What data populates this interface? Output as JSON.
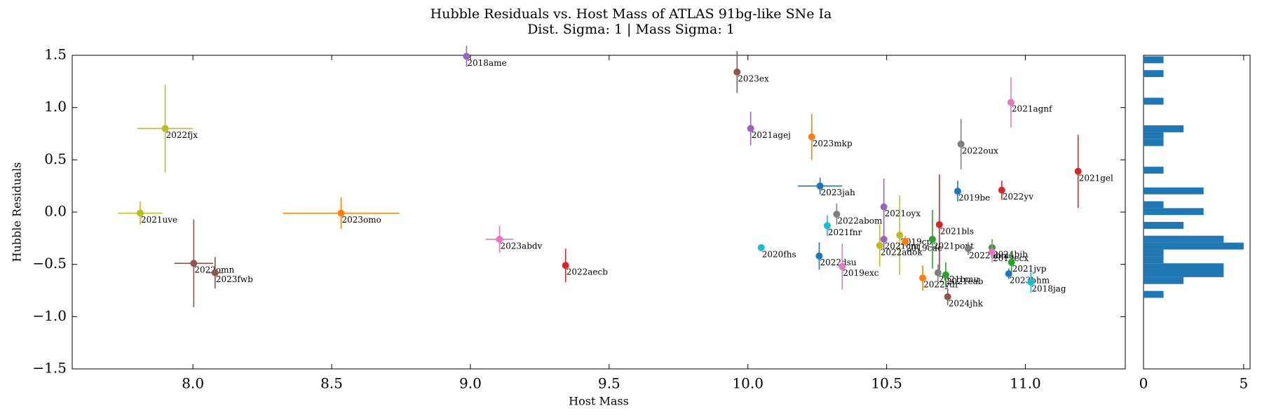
{
  "chart_data": [
    {
      "type": "scatter",
      "title": "Hubble Residuals vs. Host Mass of ATLAS 91bg-like SNe Ia",
      "subtitle": "Dist. Sigma: 1 | Mass Sigma: 1",
      "x_label": "Host Mass",
      "y_label": "Hubble Residuals",
      "xlim": [
        7.565,
        11.36
      ],
      "ylim": [
        -1.5,
        1.5
      ],
      "xticks": [
        {
          "value": 8,
          "label": "8.0"
        },
        8.5,
        {
          "value": 9,
          "label": "9.0"
        },
        9.5,
        {
          "value": 10,
          "label": "10.0"
        },
        10.5,
        {
          "value": 11,
          "label": "11.0"
        }
      ],
      "yticks": [
        {
          "value": -1.5,
          "label": "−1.5"
        },
        {
          "value": -1,
          "label": "−1.0"
        },
        {
          "value": -0.5,
          "label": "−0.5"
        },
        {
          "value": 0,
          "label": "0.0"
        },
        0.5,
        {
          "value": 1,
          "label": "1.0"
        },
        1.5
      ],
      "labels": [
        "2018ame",
        "2023ex",
        "2021agnf",
        "2022fjx",
        "2021agej",
        "2023mkp",
        "2022oux",
        "2021gel",
        "2023jah",
        "2019be",
        "2022yv",
        "2021uve",
        "2023omo",
        "2021oyx",
        "2022abom",
        "2021fnr",
        "2021bls",
        "2019cp",
        "2021cm",
        "2022adok",
        "2019cdc",
        "2021pont",
        "2022ubm",
        "2024bib",
        "2019ecx",
        "2021jvp",
        "2023bhm",
        "2018jag",
        "2020fhs",
        "2022dsu",
        "2019exc",
        "2023abdv",
        "2022aecb",
        "2022omn",
        "2023fwb",
        "2022ydr",
        "2021bmu",
        "2021eab",
        "2024jhk"
      ],
      "x": [
        8.986,
        9.961,
        10.948,
        7.9,
        10.01,
        10.23,
        10.768,
        11.19,
        10.26,
        10.756,
        10.915,
        7.81,
        8.534,
        10.49,
        10.32,
        10.286,
        10.69,
        10.547,
        10.49,
        10.475,
        10.567,
        10.665,
        10.794,
        10.88,
        10.88,
        10.95,
        10.94,
        11.02,
        10.048,
        10.257,
        10.34,
        9.105,
        9.343,
        8.003,
        8.08,
        10.63,
        10.685,
        10.713,
        10.72
      ],
      "y": [
        1.49,
        1.34,
        1.05,
        0.8,
        0.8,
        0.72,
        0.65,
        0.39,
        0.25,
        0.2,
        0.21,
        -0.01,
        -0.01,
        0.05,
        -0.02,
        -0.13,
        -0.12,
        -0.22,
        -0.26,
        -0.32,
        -0.28,
        -0.26,
        -0.35,
        -0.34,
        -0.38,
        -0.48,
        -0.59,
        -0.67,
        -0.34,
        -0.42,
        -0.52,
        -0.26,
        -0.51,
        -0.49,
        -0.58,
        -0.63,
        -0.58,
        -0.6,
        -0.81
      ],
      "xerr": [
        null,
        null,
        null,
        0.1,
        null,
        null,
        null,
        null,
        0.08,
        null,
        null,
        0.08,
        0.21,
        null,
        null,
        null,
        null,
        null,
        null,
        null,
        null,
        null,
        null,
        null,
        null,
        null,
        null,
        null,
        null,
        null,
        null,
        0.05,
        null,
        0.07,
        0.03,
        null,
        null,
        null,
        null
      ],
      "yerr": [
        0.1,
        0.2,
        0.24,
        0.42,
        0.16,
        0.22,
        0.24,
        0.35,
        0.08,
        0.1,
        0.09,
        0.11,
        0.15,
        0.27,
        0.1,
        0.1,
        0.48,
        0.38,
        0.1,
        0.2,
        0.05,
        0.28,
        0.06,
        0.08,
        0.1,
        0.1,
        0.05,
        0.1,
        0.03,
        0.13,
        0.22,
        0.13,
        0.16,
        0.42,
        0.15,
        0.12,
        0.08,
        0.12,
        0.08
      ],
      "colors": [
        "#9467bd",
        "#8c564b",
        "#e377c2",
        "#bcbd22",
        "#9467bd",
        "#ff7f0e",
        "#7f7f7f",
        "#d62728",
        "#1f77b4",
        "#1f77b4",
        "#d62728",
        "#bcbd22",
        "#ff7f0e",
        "#9467bd",
        "#7f7f7f",
        "#17becf",
        "#d62728",
        "#bcbd22",
        "#9467bd",
        "#bcbd22",
        "#ff7f0e",
        "#2ca02c",
        "#7f7f7f",
        "#2ca02c",
        "#e377c2",
        "#2ca02c",
        "#1f77b4",
        "#17becf",
        "#17becf",
        "#1f77b4",
        "#e377c2",
        "#e377c2",
        "#d62728",
        "#8c564b",
        "#8c564b",
        "#ff7f0e",
        "#7f7f7f",
        "#2ca02c",
        "#8c564b"
      ]
    },
    {
      "type": "histogram",
      "orientation": "horizontal",
      "color": "#1f77b4",
      "bins": [
        -0.82,
        -0.754,
        -0.688,
        -0.622,
        -0.556,
        -0.49,
        -0.424,
        -0.358,
        -0.292,
        -0.226,
        -0.16,
        -0.094,
        -0.028,
        0.038,
        0.104,
        0.17,
        0.236,
        0.302,
        0.368,
        0.434,
        0.5,
        0.566,
        0.632,
        0.698,
        0.764,
        0.83,
        0.896,
        0.962,
        1.028,
        1.094,
        1.16,
        1.226,
        1.292,
        1.358,
        1.424,
        1.49
      ],
      "counts": [
        1,
        0,
        2,
        4,
        4,
        1,
        1,
        5,
        4,
        0,
        2,
        0,
        3,
        1,
        0,
        3,
        0,
        0,
        1,
        0,
        0,
        0,
        1,
        1,
        2,
        0,
        0,
        0,
        1,
        0,
        0,
        0,
        1,
        0,
        1
      ],
      "xlim": [
        0,
        5.32
      ],
      "xticks": [
        0,
        5
      ],
      "ylim": [
        -1.5,
        1.5
      ]
    }
  ]
}
